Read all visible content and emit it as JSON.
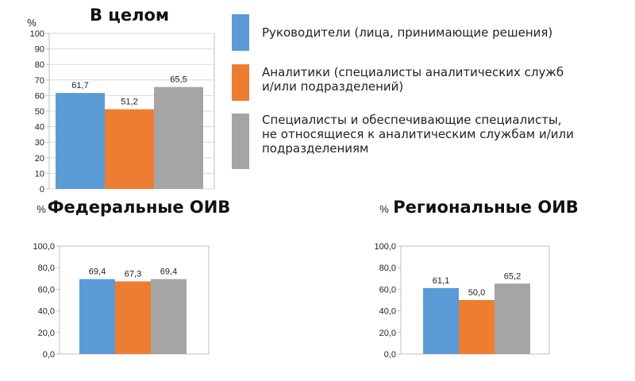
{
  "legend": [
    {
      "label": "Руководители (лица, принимающие решения)",
      "color": "#5b9bd5"
    },
    {
      "label": "Аналитики (специалисты аналитических служб и/или подразделений)",
      "color": "#ed7d31"
    },
    {
      "label": "Специалисты и обеспечивающие специалисты, не относящиеся к аналитическим службам и/или подразделениям",
      "color": "#a5a5a5"
    }
  ],
  "chart_data": [
    {
      "type": "bar",
      "title": "В целом",
      "ylabel": "%",
      "ylim": [
        0,
        100
      ],
      "yticks": [
        "0",
        "10",
        "20",
        "30",
        "40",
        "50",
        "60",
        "70",
        "80",
        "90",
        "100"
      ],
      "grid": true,
      "series": [
        {
          "name": "Руководители (лица, принимающие решения)",
          "values": [
            61.7
          ],
          "labels": [
            "61,7"
          ],
          "color": "#5b9bd5"
        },
        {
          "name": "Аналитики (специалисты аналитических служб и/или подразделений)",
          "values": [
            51.2
          ],
          "labels": [
            "51,2"
          ],
          "color": "#ed7d31"
        },
        {
          "name": "Специалисты и обеспечивающие специалисты, не относящиеся к аналитическим службам и/или подразделениям",
          "values": [
            65.5
          ],
          "labels": [
            "65,5"
          ],
          "color": "#a5a5a5"
        }
      ]
    },
    {
      "type": "bar",
      "title": "Федеральные ОИВ",
      "ylabel": "%",
      "ylim": [
        0,
        100
      ],
      "yticks": [
        "0,0",
        "20,0",
        "40,0",
        "60,0",
        "80,0",
        "100,0"
      ],
      "grid": false,
      "series": [
        {
          "name": "Руководители (лица, принимающие решения)",
          "values": [
            69.4
          ],
          "labels": [
            "69,4"
          ],
          "color": "#5b9bd5"
        },
        {
          "name": "Аналитики (специалисты аналитических служб и/или подразделений)",
          "values": [
            67.3
          ],
          "labels": [
            "67,3"
          ],
          "color": "#ed7d31"
        },
        {
          "name": "Специалисты и обеспечивающие специалисты, не относящиеся к аналитическим службам и/или подразделениям",
          "values": [
            69.4
          ],
          "labels": [
            "69,4"
          ],
          "color": "#a5a5a5"
        }
      ]
    },
    {
      "type": "bar",
      "title": "Региональные ОИВ",
      "ylabel": "%",
      "ylim": [
        0,
        100
      ],
      "yticks": [
        "0,0",
        "20,0",
        "40,0",
        "60,0",
        "80,0",
        "100,0"
      ],
      "grid": false,
      "series": [
        {
          "name": "Руководители (лица, принимающие решения)",
          "values": [
            61.1
          ],
          "labels": [
            "61,1"
          ],
          "color": "#5b9bd5"
        },
        {
          "name": "Аналитики (специалисты аналитических служб и/или подразделений)",
          "values": [
            50.0
          ],
          "labels": [
            "50,0"
          ],
          "color": "#ed7d31"
        },
        {
          "name": "Специалисты и обеспечивающие специалисты, не относящиеся к аналитическим службам и/или подразделениям",
          "values": [
            65.2
          ],
          "labels": [
            "65,2"
          ],
          "color": "#a5a5a5"
        }
      ]
    }
  ]
}
